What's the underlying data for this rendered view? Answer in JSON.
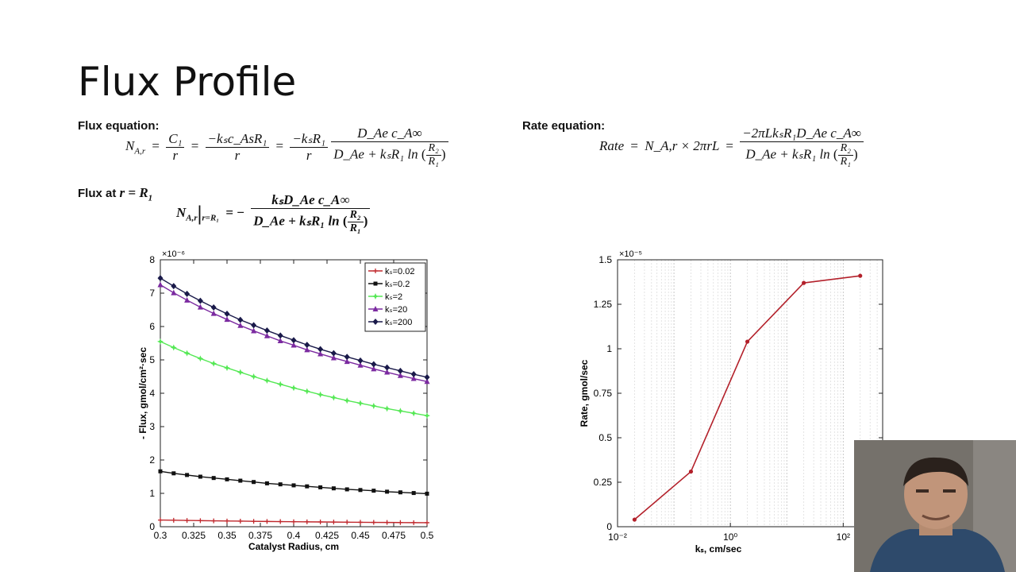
{
  "slide": {
    "title": "Flux Profile",
    "flux_equation_label": "Flux equation:",
    "rate_equation_label": "Rate equation:",
    "flux_at_label": "Flux at",
    "flux_at_cond": "r = R",
    "flux_at_cond_sub": "1"
  },
  "equations": {
    "flux": {
      "lhs": "N",
      "lhs_sub": "A,r",
      "t1_num": "C₁",
      "t1_den": "r",
      "t2_num": "−kₛc_AsR₁",
      "t2_den": "r",
      "t3_num": "−kₛR₁",
      "t3_den": "r",
      "t4_num": "D_Ae c_A∞",
      "t4_den_a": "D_Ae + kₛR₁ ln",
      "t4_den_num": "R₂",
      "t4_den_den": "R₁"
    },
    "rate": {
      "lhs": "Rate",
      "mid": "N_A,r × 2πrL",
      "num": "−2πLkₛR₁D_Ae c_A∞",
      "den_a": "D_Ae + kₛR₁ ln",
      "den_num": "R₂",
      "den_den": "R₁"
    },
    "flux_at": {
      "lhs": "N",
      "lhs_sub": "A,r",
      "eval": "r=R₁",
      "sign": "= −",
      "num": "kₛD_Ae c_A∞",
      "den_a": "D_Ae + kₛR₁ ln",
      "den_num": "R₂",
      "den_den": "R₁"
    }
  },
  "chart_data": [
    {
      "type": "line",
      "xlabel": "Catalyst Radius, cm",
      "ylabel": "- Flux, gmol/cm²·sec",
      "y_multiplier": "×10⁻⁶",
      "xlim": [
        0.3,
        0.5
      ],
      "ylim": [
        0,
        8
      ],
      "xticks": [
        "0.3",
        "0.325",
        "0.35",
        "0.375",
        "0.4",
        "0.425",
        "0.45",
        "0.475",
        "0.5"
      ],
      "yticks": [
        "0",
        "1",
        "2",
        "3",
        "4",
        "5",
        "6",
        "7",
        "8"
      ],
      "legend_position": "top-right",
      "x": [
        0.3,
        0.31,
        0.32,
        0.33,
        0.34,
        0.35,
        0.36,
        0.37,
        0.38,
        0.39,
        0.4,
        0.41,
        0.42,
        0.43,
        0.44,
        0.45,
        0.46,
        0.47,
        0.48,
        0.49,
        0.5
      ],
      "series": [
        {
          "name": "kₛ=0.02",
          "color": "#c0282d",
          "marker": "plus",
          "values": [
            0.2,
            0.194,
            0.188,
            0.182,
            0.176,
            0.171,
            0.167,
            0.162,
            0.158,
            0.154,
            0.15,
            0.146,
            0.143,
            0.14,
            0.136,
            0.133,
            0.13,
            0.128,
            0.125,
            0.122,
            0.12
          ]
        },
        {
          "name": "kₛ=0.2",
          "color": "#111111",
          "marker": "square",
          "values": [
            1.66,
            1.6,
            1.55,
            1.5,
            1.46,
            1.42,
            1.38,
            1.34,
            1.3,
            1.27,
            1.24,
            1.21,
            1.18,
            1.15,
            1.12,
            1.1,
            1.08,
            1.05,
            1.03,
            1.01,
            0.99
          ]
        },
        {
          "name": "kₛ=2",
          "color": "#55e855",
          "marker": "star",
          "values": [
            5.55,
            5.37,
            5.2,
            5.04,
            4.89,
            4.76,
            4.63,
            4.5,
            4.38,
            4.27,
            4.16,
            4.06,
            3.96,
            3.87,
            3.78,
            3.7,
            3.62,
            3.54,
            3.47,
            3.4,
            3.33
          ]
        },
        {
          "name": "kₛ=20",
          "color": "#7b2aa0",
          "marker": "triangle",
          "values": [
            7.25,
            7.01,
            6.79,
            6.58,
            6.39,
            6.21,
            6.03,
            5.87,
            5.72,
            5.57,
            5.44,
            5.3,
            5.18,
            5.06,
            4.95,
            4.84,
            4.73,
            4.63,
            4.53,
            4.44,
            4.35
          ]
        },
        {
          "name": "kₛ=200",
          "color": "#1a1a4a",
          "marker": "diamond",
          "values": [
            7.45,
            7.21,
            6.98,
            6.77,
            6.57,
            6.38,
            6.2,
            6.04,
            5.88,
            5.73,
            5.59,
            5.45,
            5.32,
            5.2,
            5.09,
            4.98,
            4.87,
            4.77,
            4.67,
            4.57,
            4.48
          ]
        }
      ]
    },
    {
      "type": "line",
      "xlabel": "kₛ, cm/sec",
      "ylabel": "Rate, gmol/sec",
      "y_multiplier": "×10⁻⁵",
      "xscale": "log",
      "xlim": [
        0.01,
        500
      ],
      "ylim": [
        0,
        1.5
      ],
      "xticks": [
        "10⁻²",
        "10⁰",
        "10²"
      ],
      "yticks": [
        "0",
        "0.25",
        "0.5",
        "0.75",
        "1",
        "1.25",
        "1.5"
      ],
      "grid": true,
      "series": [
        {
          "color": "#b3202a",
          "x": [
            0.02,
            0.2,
            2,
            20,
            200
          ],
          "values": [
            0.04,
            0.31,
            1.04,
            1.37,
            1.41
          ]
        }
      ]
    }
  ]
}
